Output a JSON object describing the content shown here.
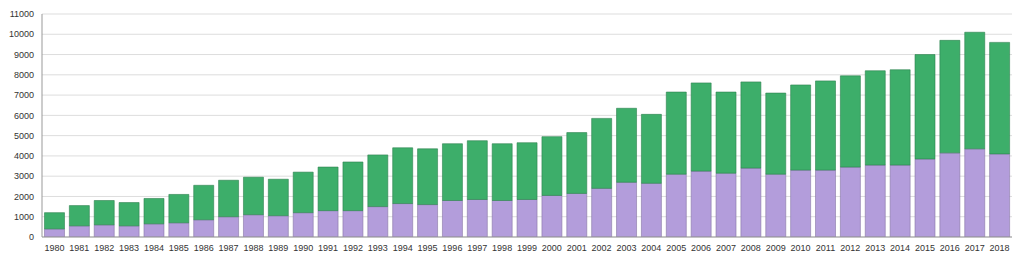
{
  "chart_data": {
    "type": "bar",
    "stacked": true,
    "grid": true,
    "categories": [
      "1980",
      "1981",
      "1982",
      "1983",
      "1984",
      "1985",
      "1986",
      "1987",
      "1988",
      "1989",
      "1990",
      "1991",
      "1992",
      "1993",
      "1994",
      "1995",
      "1996",
      "1997",
      "1998",
      "1999",
      "2000",
      "2001",
      "2002",
      "2003",
      "2004",
      "2005",
      "2006",
      "2007",
      "2008",
      "2009",
      "2010",
      "2011",
      "2012",
      "2013",
      "2014",
      "2015",
      "2016",
      "2017",
      "2018"
    ],
    "series": [
      {
        "color": "#b39ddb",
        "values": [
          400,
          550,
          600,
          550,
          650,
          700,
          850,
          1000,
          1100,
          1050,
          1200,
          1300,
          1300,
          1500,
          1650,
          1600,
          1800,
          1850,
          1800,
          1850,
          2050,
          2150,
          2400,
          2700,
          2650,
          3100,
          3250,
          3150,
          3400,
          3100,
          3300,
          3300,
          3450,
          3550,
          3550,
          3850,
          4150,
          4350,
          4100
        ]
      },
      {
        "color": "#3dae6a",
        "values": [
          800,
          1000,
          1200,
          1150,
          1250,
          1400,
          1700,
          1800,
          1850,
          1800,
          2000,
          2150,
          2400,
          2550,
          2750,
          2750,
          2800,
          2900,
          2800,
          2800,
          2900,
          3000,
          3450,
          3650,
          3400,
          4050,
          4350,
          4000,
          4250,
          4000,
          4200,
          4400,
          4500,
          4650,
          4700,
          5150,
          5550,
          5750,
          5500
        ]
      }
    ],
    "ylim": [
      0,
      11000
    ],
    "yticks": [
      0,
      1000,
      2000,
      3000,
      4000,
      5000,
      6000,
      7000,
      8000,
      9000,
      10000,
      11000
    ]
  }
}
